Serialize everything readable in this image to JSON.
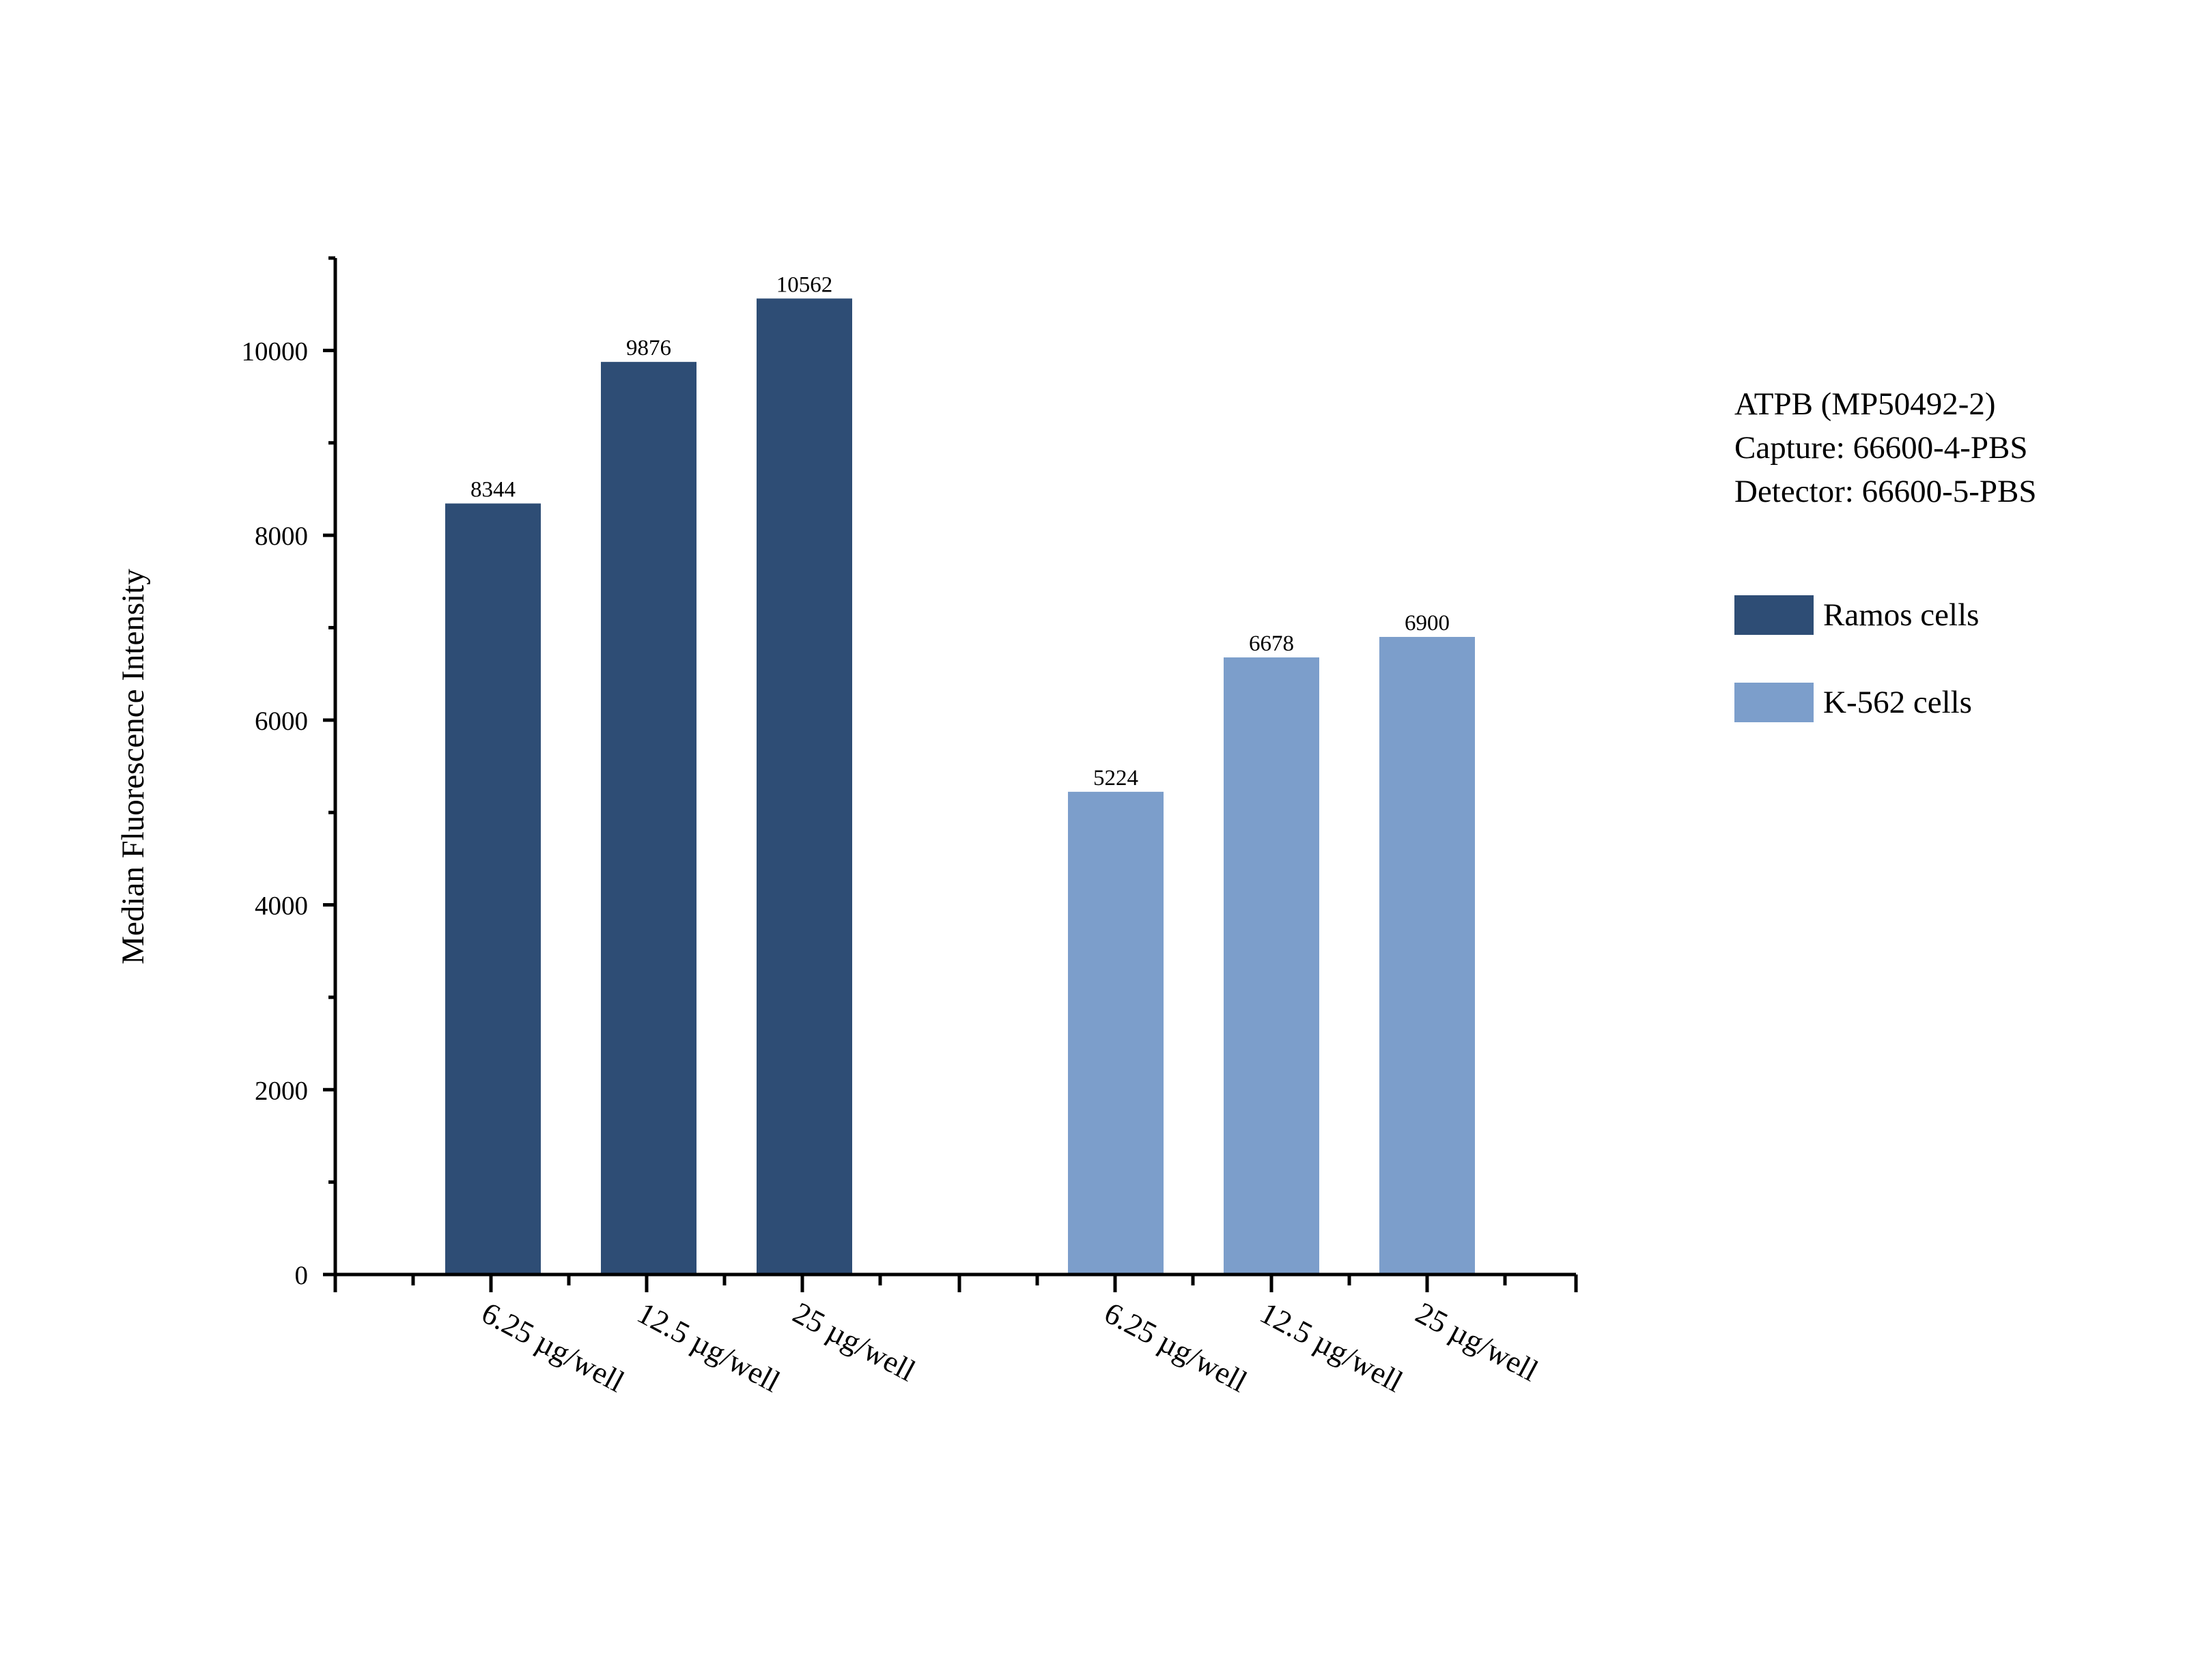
{
  "chart_data": {
    "type": "bar",
    "ylabel": "Median Fluorescence Intensity",
    "xlabel": "",
    "ylim": [
      0,
      11000
    ],
    "yticks": [
      0,
      2000,
      4000,
      6000,
      8000,
      10000
    ],
    "grid": false,
    "legend_position": "right",
    "categories": [
      "6.25 µg/well",
      "12.5 µg/well",
      "25 µg/well"
    ],
    "series": [
      {
        "name": "Ramos cells",
        "color": "#2e4d75",
        "values": [
          8344,
          9876,
          10562
        ],
        "value_labels": [
          "8344",
          "9876",
          "10562"
        ]
      },
      {
        "name": "K-562 cells",
        "color": "#7c9ecb",
        "values": [
          5224,
          6678,
          6900
        ],
        "value_labels": [
          "5224",
          "6678",
          "6900"
        ]
      }
    ]
  },
  "annotations": [
    "ATPB (MP50492-2)",
    "Capture: 66600-4-PBS",
    "Detector: 66600-5-PBS"
  ]
}
